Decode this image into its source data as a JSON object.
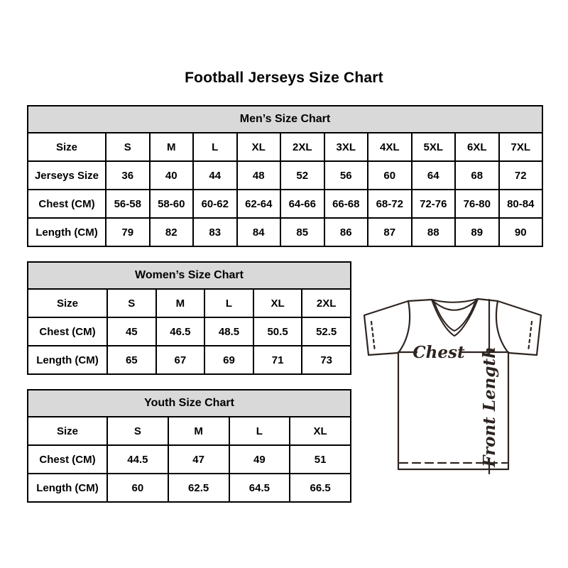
{
  "page": {
    "title": "Football Jerseys Size Chart"
  },
  "colors": {
    "background": "#ffffff",
    "table_header_bg": "#d9d9d9",
    "table_border": "#000000",
    "text": "#000000",
    "jersey_line": "#2d2420"
  },
  "mens_chart": {
    "title": "Men’s Size Chart",
    "rows": [
      {
        "label": "Size",
        "values": [
          "S",
          "M",
          "L",
          "XL",
          "2XL",
          "3XL",
          "4XL",
          "5XL",
          "6XL",
          "7XL"
        ]
      },
      {
        "label": "Jerseys Size",
        "values": [
          "36",
          "40",
          "44",
          "48",
          "52",
          "56",
          "60",
          "64",
          "68",
          "72"
        ]
      },
      {
        "label": "Chest (CM)",
        "values": [
          "56-58",
          "58-60",
          "60-62",
          "62-64",
          "64-66",
          "66-68",
          "68-72",
          "72-76",
          "76-80",
          "80-84"
        ]
      },
      {
        "label": "Length (CM)",
        "values": [
          "79",
          "82",
          "83",
          "84",
          "85",
          "86",
          "87",
          "88",
          "89",
          "90"
        ]
      }
    ]
  },
  "womens_chart": {
    "title": "Women’s Size Chart",
    "rows": [
      {
        "label": "Size",
        "values": [
          "S",
          "M",
          "L",
          "XL",
          "2XL"
        ]
      },
      {
        "label": "Chest (CM)",
        "values": [
          "45",
          "46.5",
          "48.5",
          "50.5",
          "52.5"
        ]
      },
      {
        "label": "Length (CM)",
        "values": [
          "65",
          "67",
          "69",
          "71",
          "73"
        ]
      }
    ]
  },
  "youth_chart": {
    "title": "Youth Size Chart",
    "rows": [
      {
        "label": "Size",
        "values": [
          "S",
          "M",
          "L",
          "XL"
        ]
      },
      {
        "label": "Chest (CM)",
        "values": [
          "44.5",
          "47",
          "49",
          "51"
        ]
      },
      {
        "label": "Length (CM)",
        "values": [
          "60",
          "62.5",
          "64.5",
          "66.5"
        ]
      }
    ]
  },
  "jersey_diagram": {
    "chest_label": "Chest",
    "front_length_label": "Front Length"
  }
}
